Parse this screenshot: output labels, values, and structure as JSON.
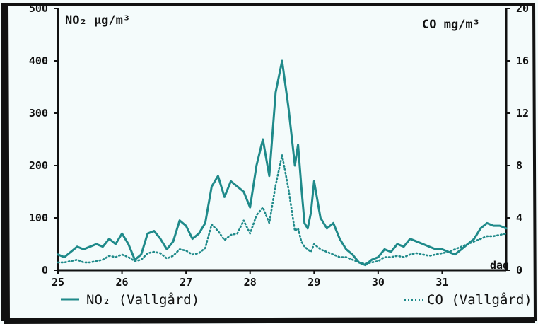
{
  "chart_data": {
    "type": "line",
    "ylabel_left": "NO₂ µg/m³",
    "ylabel_right": "CO  mg/m³",
    "xlabel": "dag",
    "ylim_left": [
      0,
      500
    ],
    "ylim_right": [
      0,
      20
    ],
    "yticks_left": [
      "0",
      "100",
      "200",
      "300",
      "400",
      "500"
    ],
    "yticks_right": [
      "0",
      "4",
      "8",
      "12",
      "16",
      "20"
    ],
    "xlim": [
      25,
      32
    ],
    "xticks": [
      {
        "value": 25,
        "label": "25"
      },
      {
        "value": 26,
        "label": "26"
      },
      {
        "value": 27,
        "label": "27"
      },
      {
        "value": 28,
        "label": "28"
      },
      {
        "value": 29,
        "label": "29"
      },
      {
        "value": 30,
        "label": "30"
      },
      {
        "value": 31,
        "label": "31"
      }
    ],
    "grid": false,
    "legend": "bottom",
    "series": [
      {
        "name": "NO₂ (Vallgård)",
        "axis": "left",
        "style": "solid",
        "color": "#1f8a8a",
        "x": [
          25.0,
          25.1,
          25.2,
          25.3,
          25.4,
          25.5,
          25.6,
          25.7,
          25.8,
          25.9,
          26.0,
          26.1,
          26.2,
          26.3,
          26.4,
          26.5,
          26.6,
          26.7,
          26.8,
          26.9,
          27.0,
          27.1,
          27.2,
          27.3,
          27.4,
          27.5,
          27.6,
          27.7,
          27.8,
          27.9,
          28.0,
          28.1,
          28.2,
          28.3,
          28.4,
          28.5,
          28.6,
          28.7,
          28.75,
          28.8,
          28.85,
          28.9,
          28.95,
          29.0,
          29.1,
          29.2,
          29.3,
          29.4,
          29.5,
          29.6,
          29.7,
          29.8,
          29.9,
          30.0,
          30.1,
          30.2,
          30.3,
          30.4,
          30.5,
          30.6,
          30.7,
          30.8,
          30.9,
          31.0,
          31.1,
          31.2,
          31.3,
          31.4,
          31.5,
          31.6,
          31.7,
          31.8,
          31.9,
          32.0
        ],
        "values": [
          30,
          25,
          35,
          45,
          40,
          45,
          50,
          45,
          60,
          50,
          70,
          50,
          20,
          30,
          70,
          75,
          60,
          40,
          55,
          95,
          85,
          60,
          70,
          90,
          160,
          180,
          140,
          170,
          160,
          150,
          120,
          200,
          250,
          180,
          340,
          400,
          310,
          200,
          240,
          160,
          90,
          80,
          110,
          170,
          100,
          80,
          90,
          60,
          40,
          30,
          15,
          10,
          20,
          25,
          40,
          35,
          50,
          45,
          60,
          55,
          50,
          45,
          40,
          40,
          35,
          30,
          40,
          50,
          60,
          80,
          90,
          85,
          85,
          80
        ]
      },
      {
        "name": "CO (Vallgård)",
        "axis": "right",
        "style": "dotted",
        "color": "#1f8a8a",
        "x": [
          25.0,
          25.1,
          25.2,
          25.3,
          25.4,
          25.5,
          25.6,
          25.7,
          25.8,
          25.9,
          26.0,
          26.1,
          26.2,
          26.3,
          26.4,
          26.5,
          26.6,
          26.7,
          26.8,
          26.9,
          27.0,
          27.1,
          27.2,
          27.3,
          27.4,
          27.5,
          27.6,
          27.7,
          27.8,
          27.9,
          28.0,
          28.1,
          28.2,
          28.3,
          28.4,
          28.5,
          28.6,
          28.7,
          28.75,
          28.8,
          28.85,
          28.9,
          28.95,
          29.0,
          29.1,
          29.2,
          29.3,
          29.4,
          29.5,
          29.6,
          29.7,
          29.8,
          29.9,
          30.0,
          30.1,
          30.2,
          30.3,
          30.4,
          30.5,
          30.6,
          30.7,
          30.8,
          30.9,
          31.0,
          31.1,
          31.2,
          31.3,
          31.4,
          31.5,
          31.6,
          31.7,
          31.8,
          31.9,
          32.0
        ],
        "values": [
          0.6,
          0.6,
          0.7,
          0.8,
          0.6,
          0.6,
          0.7,
          0.8,
          1.1,
          1.0,
          1.2,
          1.0,
          0.7,
          0.8,
          1.3,
          1.4,
          1.3,
          0.9,
          1.1,
          1.6,
          1.5,
          1.2,
          1.3,
          1.7,
          3.5,
          3.0,
          2.3,
          2.7,
          2.8,
          3.8,
          2.8,
          4.2,
          4.8,
          3.6,
          6.5,
          8.8,
          6.2,
          3.0,
          3.2,
          2.2,
          1.8,
          1.6,
          1.4,
          2.0,
          1.6,
          1.4,
          1.2,
          1.0,
          1.0,
          0.8,
          0.6,
          0.5,
          0.6,
          0.7,
          1.0,
          1.0,
          1.1,
          1.0,
          1.2,
          1.3,
          1.2,
          1.1,
          1.2,
          1.3,
          1.4,
          1.6,
          1.8,
          2.0,
          2.2,
          2.4,
          2.6,
          2.6,
          2.7,
          2.8
        ]
      }
    ]
  },
  "colors": {
    "line": "#1f8a8a",
    "ink": "#111111",
    "background": "#f4fbfb"
  }
}
